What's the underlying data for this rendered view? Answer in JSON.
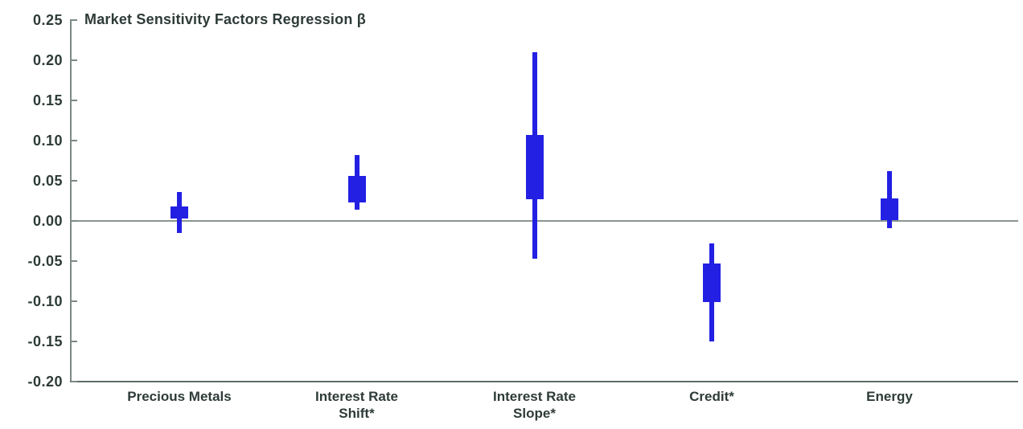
{
  "chart_data": {
    "type": "box",
    "title": "Market Sensitivity Factors Regression β",
    "xlabel": "",
    "ylabel": "",
    "ylim": [
      -0.2,
      0.25
    ],
    "y_tick_step": 0.05,
    "grid": false,
    "legend": null,
    "zero_line": true,
    "y_ticks": [
      0.25,
      0.2,
      0.15,
      0.1,
      0.05,
      0.0,
      -0.05,
      -0.1,
      -0.15,
      -0.2
    ],
    "y_tick_labels": [
      "0.25",
      "0.20",
      "0.15",
      "0.10",
      "0.05",
      "0.00",
      "-0.05",
      "-0.10",
      "-0.15",
      "-0.20"
    ],
    "categories": [
      "Precious Metals",
      "Interest Rate Shift*",
      "Interest Rate Slope*",
      "Credit*",
      "Energy"
    ],
    "category_label_lines": [
      [
        "Precious Metals"
      ],
      [
        "Interest Rate",
        "Shift*"
      ],
      [
        "Interest Rate",
        "Slope*"
      ],
      [
        "Credit*"
      ],
      [
        "Energy"
      ]
    ],
    "boxes": [
      {
        "category": "Precious Metals",
        "whisker_low": -0.015,
        "box_low": 0.003,
        "box_high": 0.018,
        "whisker_high": 0.036
      },
      {
        "category": "Interest Rate Shift*",
        "whisker_low": 0.014,
        "box_low": 0.023,
        "box_high": 0.056,
        "whisker_high": 0.082
      },
      {
        "category": "Interest Rate Slope*",
        "whisker_low": -0.047,
        "box_low": 0.027,
        "box_high": 0.107,
        "whisker_high": 0.21
      },
      {
        "category": "Credit*",
        "whisker_low": -0.15,
        "box_low": -0.101,
        "box_high": -0.053,
        "whisker_high": -0.028
      },
      {
        "category": "Energy",
        "whisker_low": -0.009,
        "box_low": 0.001,
        "box_high": 0.028,
        "whisker_high": 0.062
      }
    ],
    "colors": {
      "box": "#2320e3",
      "text": "#2e3b38",
      "zero_line": "#8b958f",
      "axis": "#7d8a83",
      "baseline": "#5e6e67",
      "background": "#ffffff"
    }
  }
}
